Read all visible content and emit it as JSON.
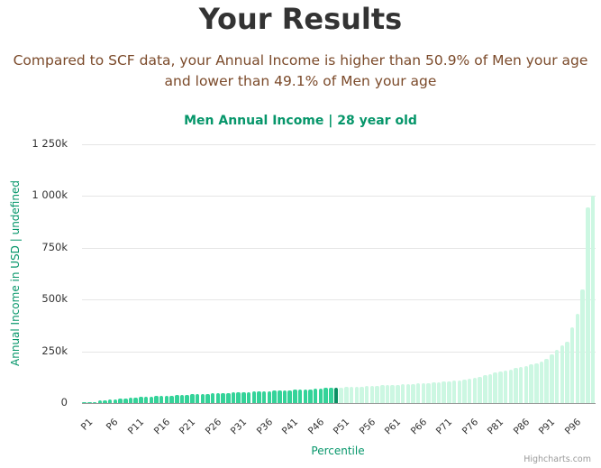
{
  "header": {
    "title": "Your Results",
    "summary_line1": "Compared to SCF data, your Annual Income is higher than 50.9% of Men your age",
    "summary_line2": "and lower than 49.1% of Men your age"
  },
  "colors": {
    "below_user": "#34d399",
    "user": "#0b8f63",
    "above_user": "#ccf7e2",
    "title_green": "#06966a",
    "summary_brown": "#7b4a2a"
  },
  "chart_data": {
    "type": "bar",
    "title": "Men Annual Income | 28 year old",
    "xlabel": "Percentile",
    "ylabel": "Annual Income in USD | undefined",
    "ylim": [
      0,
      1250
    ],
    "yticks": [
      "0",
      "250k",
      "500k",
      "750k",
      "1 000k",
      "1 250k"
    ],
    "ytick_values": [
      0,
      250,
      500,
      750,
      1000,
      1250
    ],
    "xtick_labels": [
      "P1",
      "P6",
      "P11",
      "P16",
      "P21",
      "P26",
      "P31",
      "P36",
      "P41",
      "P46",
      "P51",
      "P56",
      "P61",
      "P66",
      "P71",
      "P76",
      "P81",
      "P86",
      "P91",
      "P96"
    ],
    "highlight_index": 49,
    "grid": true,
    "legend": false,
    "units": "thousands USD",
    "categories": [
      "P1",
      "P2",
      "P3",
      "P4",
      "P5",
      "P6",
      "P7",
      "P8",
      "P9",
      "P10",
      "P11",
      "P12",
      "P13",
      "P14",
      "P15",
      "P16",
      "P17",
      "P18",
      "P19",
      "P20",
      "P21",
      "P22",
      "P23",
      "P24",
      "P25",
      "P26",
      "P27",
      "P28",
      "P29",
      "P30",
      "P31",
      "P32",
      "P33",
      "P34",
      "P35",
      "P36",
      "P37",
      "P38",
      "P39",
      "P40",
      "P41",
      "P42",
      "P43",
      "P44",
      "P45",
      "P46",
      "P47",
      "P48",
      "P49",
      "P50",
      "P51",
      "P52",
      "P53",
      "P54",
      "P55",
      "P56",
      "P57",
      "P58",
      "P59",
      "P60",
      "P61",
      "P62",
      "P63",
      "P64",
      "P65",
      "P66",
      "P67",
      "P68",
      "P69",
      "P70",
      "P71",
      "P72",
      "P73",
      "P74",
      "P75",
      "P76",
      "P77",
      "P78",
      "P79",
      "P80",
      "P81",
      "P82",
      "P83",
      "P84",
      "P85",
      "P86",
      "P87",
      "P88",
      "P89",
      "P90",
      "P91",
      "P92",
      "P93",
      "P94",
      "P95",
      "P96",
      "P97",
      "P98",
      "P99",
      "P100"
    ],
    "values": [
      2,
      2,
      5,
      11,
      14,
      16,
      19,
      21,
      24,
      26,
      27,
      29,
      30,
      31,
      33,
      34,
      36,
      37,
      38,
      40,
      41,
      42,
      43,
      44,
      45,
      46,
      47,
      49,
      50,
      51,
      52,
      53,
      54,
      55,
      56,
      57,
      58,
      60,
      61,
      62,
      63,
      64,
      65,
      66,
      67,
      69,
      70,
      72,
      74,
      75,
      76,
      77,
      78,
      79,
      80,
      81,
      82,
      84,
      85,
      86,
      88,
      89,
      90,
      92,
      93,
      95,
      96,
      98,
      100,
      101,
      103,
      105,
      107,
      110,
      113,
      117,
      122,
      128,
      134,
      141,
      146,
      152,
      158,
      163,
      168,
      174,
      180,
      186,
      193,
      201,
      214,
      236,
      258,
      279,
      297,
      367,
      432,
      550,
      947,
      1000
    ]
  },
  "credits": "Highcharts.com"
}
